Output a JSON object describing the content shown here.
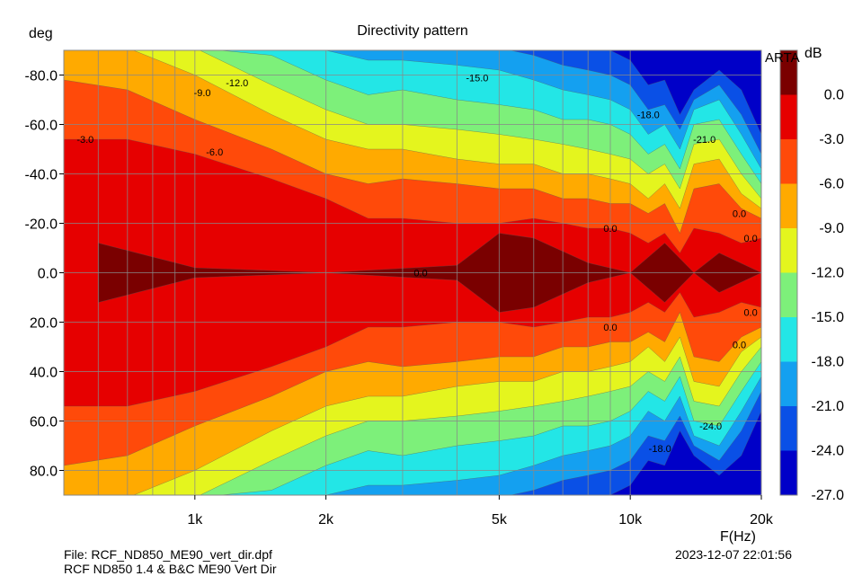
{
  "chart_data": {
    "type": "heatmap",
    "title": "Directivity pattern",
    "ylabel": "deg",
    "xlabel": "F(Hz)",
    "colorbar_label": "dB",
    "x_scale": "log",
    "xlim": [
      500,
      20000
    ],
    "ylim": [
      -90,
      90
    ],
    "y_inverted": true,
    "x_ticks": [
      {
        "value": 1000,
        "label": "1k"
      },
      {
        "value": 2000,
        "label": "2k"
      },
      {
        "value": 5000,
        "label": "5k"
      },
      {
        "value": 10000,
        "label": "10k"
      },
      {
        "value": 20000,
        "label": "20k"
      }
    ],
    "y_ticks": [
      {
        "value": -80,
        "label": "-80.0"
      },
      {
        "value": -60,
        "label": "-60.0"
      },
      {
        "value": -40,
        "label": "-40.0"
      },
      {
        "value": -20,
        "label": "-20.0"
      },
      {
        "value": 0,
        "label": "0.0"
      },
      {
        "value": 20,
        "label": "20.0"
      },
      {
        "value": 40,
        "label": "40.0"
      },
      {
        "value": 60,
        "label": "60.0"
      },
      {
        "value": 80,
        "label": "80.0"
      }
    ],
    "grid": true,
    "colorbar": [
      {
        "label": "0.0",
        "color": "#7a0000"
      },
      {
        "label": "-3.0",
        "color": "#e60000"
      },
      {
        "label": "-6.0",
        "color": "#ff4a0a"
      },
      {
        "label": "-9.0",
        "color": "#ffaa00"
      },
      {
        "label": "-12.0",
        "color": "#e4f51e"
      },
      {
        "label": "-15.0",
        "color": "#7df07a"
      },
      {
        "label": "-18.0",
        "color": "#23e6e6"
      },
      {
        "label": "-21.0",
        "color": "#14a0f0"
      },
      {
        "label": "-24.0",
        "color": "#0a50e6"
      },
      {
        "label": "-27.0",
        "color": "#0000c8"
      }
    ],
    "beamwidth_contours": [
      {
        "level_db": 0,
        "freq": [
          600,
          1000,
          2000,
          4000,
          5000,
          6000,
          8000,
          10000,
          12000,
          14000,
          16000,
          20000
        ],
        "half_angle_deg": [
          12,
          2,
          0,
          3,
          16,
          14,
          4,
          0,
          12,
          0,
          8,
          0
        ]
      },
      {
        "level_db": -3,
        "freq": [
          500,
          700,
          1000,
          1500,
          2000,
          2500,
          3000,
          4000,
          5000,
          6000,
          7000,
          8000,
          9000,
          10000,
          11000,
          12000,
          13000,
          14000,
          16000,
          18000,
          20000
        ],
        "half_angle_deg": [
          54,
          54,
          48,
          38,
          30,
          22,
          22,
          20,
          20,
          22,
          20,
          18,
          18,
          16,
          12,
          16,
          8,
          18,
          16,
          12,
          14
        ]
      },
      {
        "level_db": -6,
        "freq": [
          500,
          700,
          1000,
          1500,
          2000,
          2500,
          3000,
          4000,
          5000,
          6000,
          7000,
          8000,
          9000,
          10000,
          11000,
          12000,
          13000,
          14000,
          16000,
          18000,
          20000
        ],
        "half_angle_deg": [
          78,
          74,
          62,
          50,
          40,
          36,
          38,
          36,
          34,
          34,
          30,
          30,
          28,
          28,
          24,
          28,
          16,
          34,
          36,
          26,
          22
        ]
      },
      {
        "level_db": -9,
        "freq": [
          500,
          700,
          1000,
          1500,
          2000,
          2500,
          3000,
          4000,
          5000,
          6000,
          7000,
          8000,
          9000,
          10000,
          11000,
          12000,
          13000,
          14000,
          16000,
          18000,
          20000
        ],
        "half_angle_deg": [
          91,
          91,
          80,
          64,
          54,
          50,
          50,
          46,
          44,
          44,
          40,
          40,
          38,
          36,
          30,
          36,
          26,
          44,
          46,
          32,
          26
        ]
      },
      {
        "level_db": -12,
        "freq": [
          500,
          700,
          1000,
          1500,
          2000,
          2500,
          3000,
          4000,
          5000,
          6000,
          7000,
          8000,
          9000,
          10000,
          11000,
          12000,
          13000,
          14000,
          16000,
          18000,
          20000
        ],
        "half_angle_deg": [
          91,
          91,
          91,
          76,
          66,
          60,
          60,
          58,
          56,
          54,
          52,
          50,
          48,
          46,
          40,
          44,
          34,
          52,
          54,
          40,
          30
        ]
      },
      {
        "level_db": -15,
        "freq": [
          500,
          700,
          1000,
          1500,
          2000,
          2500,
          3000,
          4000,
          5000,
          6000,
          7000,
          8000,
          9000,
          10000,
          11000,
          12000,
          13000,
          14000,
          16000,
          18000,
          20000
        ],
        "half_angle_deg": [
          91,
          91,
          91,
          88,
          78,
          72,
          74,
          70,
          68,
          66,
          62,
          62,
          60,
          56,
          48,
          52,
          42,
          60,
          62,
          48,
          36
        ]
      },
      {
        "level_db": -18,
        "freq": [
          500,
          700,
          1000,
          1500,
          2000,
          2500,
          3000,
          4000,
          5000,
          6000,
          7000,
          8000,
          9000,
          10000,
          11000,
          12000,
          13000,
          14000,
          16000,
          18000,
          20000
        ],
        "half_angle_deg": [
          91,
          91,
          91,
          91,
          90,
          86,
          86,
          84,
          82,
          78,
          74,
          72,
          70,
          66,
          56,
          60,
          50,
          66,
          70,
          56,
          42
        ]
      },
      {
        "level_db": -21,
        "freq": [
          500,
          700,
          1000,
          1500,
          2000,
          2500,
          3000,
          4000,
          5000,
          6000,
          7000,
          8000,
          9000,
          10000,
          11000,
          12000,
          13000,
          14000,
          16000,
          18000,
          20000
        ],
        "half_angle_deg": [
          91,
          91,
          91,
          91,
          91,
          91,
          91,
          91,
          91,
          88,
          84,
          82,
          80,
          76,
          66,
          68,
          58,
          70,
          76,
          64,
          48
        ]
      },
      {
        "level_db": -24,
        "freq": [
          500,
          700,
          1000,
          1500,
          2000,
          2500,
          3000,
          4000,
          5000,
          6000,
          7000,
          8000,
          9000,
          10000,
          11000,
          12000,
          13000,
          14000,
          16000,
          18000,
          20000
        ],
        "half_angle_deg": [
          91,
          91,
          91,
          91,
          91,
          91,
          91,
          91,
          91,
          91,
          91,
          91,
          90,
          86,
          76,
          78,
          64,
          74,
          82,
          74,
          56
        ]
      }
    ],
    "contour_labels": [
      {
        "text": "-3.0",
        "freq": 560,
        "angle": -54
      },
      {
        "text": "-9.0",
        "freq": 1040,
        "angle": -73
      },
      {
        "text": "-12.0",
        "freq": 1250,
        "angle": -77
      },
      {
        "text": "-6.0",
        "freq": 1110,
        "angle": -49
      },
      {
        "text": "-15.0",
        "freq": 4450,
        "angle": -79
      },
      {
        "text": "-18.0",
        "freq": 11000,
        "angle": -64
      },
      {
        "text": "-21.0",
        "freq": 14800,
        "angle": -54
      },
      {
        "text": "0.0",
        "freq": 3300,
        "angle": 0
      },
      {
        "text": "0.0",
        "freq": 9000,
        "angle": -18
      },
      {
        "text": "0.0",
        "freq": 9000,
        "angle": 22
      },
      {
        "text": "0.0",
        "freq": 17800,
        "angle": -24
      },
      {
        "text": "0.0",
        "freq": 18900,
        "angle": -14
      },
      {
        "text": "0.0",
        "freq": 18900,
        "angle": 16
      },
      {
        "text": "0.0",
        "freq": 17800,
        "angle": 29
      },
      {
        "text": "-24.0",
        "freq": 15300,
        "angle": 62
      },
      {
        "text": "-18.0",
        "freq": 11700,
        "angle": 71
      }
    ]
  },
  "arta_logo": "ARTA",
  "footer": {
    "file": "File: RCF_ND850_ME90_vert_dir.dpf",
    "description": "RCF ND850 1.4 & B&C ME90 Vert Dir",
    "timestamp": "2023-12-07  22:01:56"
  }
}
